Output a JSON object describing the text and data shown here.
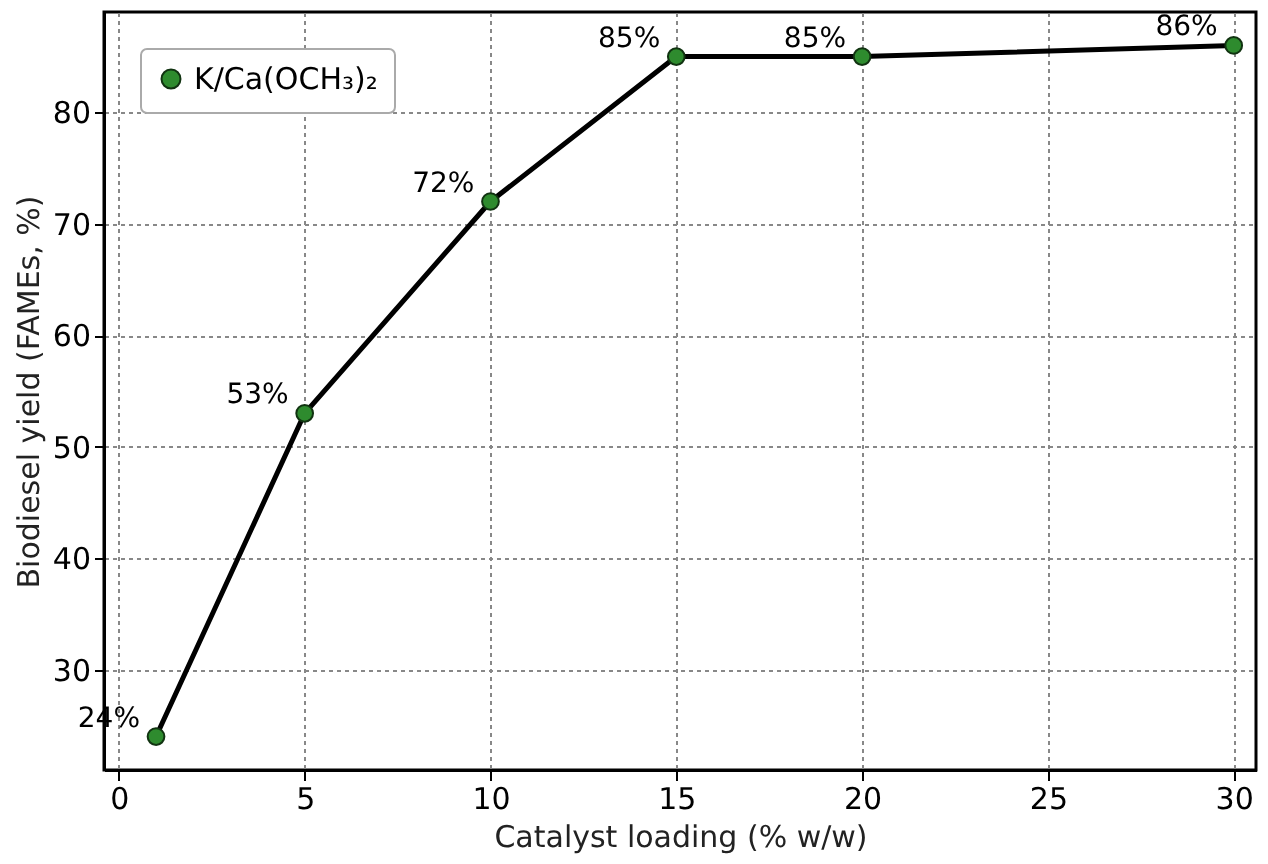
{
  "chart_data": {
    "type": "line",
    "xlabel": "Catalyst loading (% w/w)",
    "ylabel": "Biodiesel yield (FAMEs, %)",
    "x": [
      1,
      5,
      10,
      15,
      20,
      30
    ],
    "series": [
      {
        "name": "K/Ca(OCH₃)₂",
        "color": "#2e8b2e",
        "values": [
          24,
          53,
          72,
          85,
          85,
          86
        ],
        "value_labels": [
          "24%",
          "53%",
          "72%",
          "85%",
          "85%",
          "86%"
        ]
      }
    ],
    "xlim": [
      -0.4,
      30.6
    ],
    "xticks": [
      0,
      5,
      10,
      15,
      20,
      25,
      30
    ],
    "ylim": [
      21,
      89
    ],
    "yticks": [
      30,
      40,
      50,
      60,
      70,
      80
    ],
    "grid": true,
    "legend": "top left",
    "marker": "circle",
    "line_style": "solid"
  }
}
